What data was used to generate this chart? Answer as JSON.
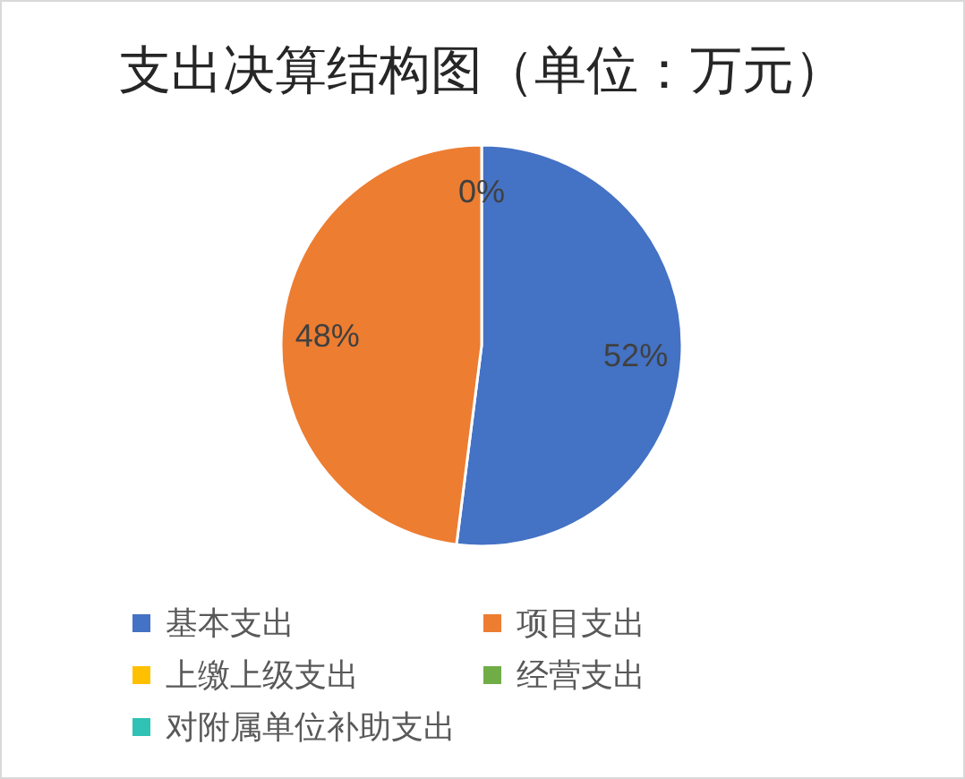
{
  "chart_data": {
    "type": "pie",
    "title": "支出决算结构图（单位：万元）",
    "categories": [
      "基本支出",
      "项目支出",
      "上缴上级支出",
      "经营支出",
      "对附属单位补助支出"
    ],
    "values": [
      52,
      48,
      0,
      0,
      0
    ],
    "value_labels": [
      "52%",
      "48%",
      "0%",
      null,
      null
    ],
    "colors": [
      "#4472c4",
      "#ed7d31",
      "#ffc000",
      "#70ad47",
      "#2fc2b5"
    ],
    "legend": "bottom"
  }
}
